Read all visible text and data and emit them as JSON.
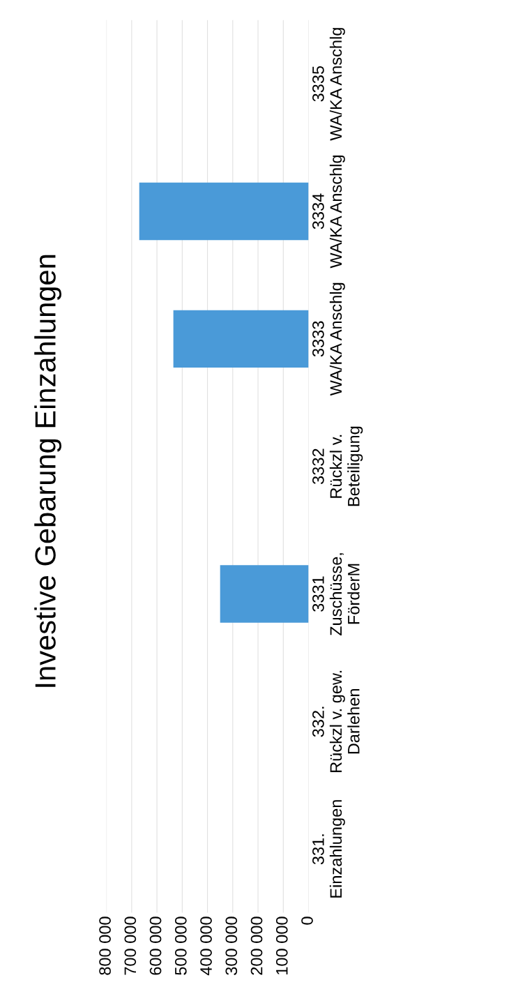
{
  "chart_data": {
    "type": "bar",
    "orientation": "horizontal",
    "title": "Investive Gebarung Einzahlungen",
    "categories": [
      "3335\nWA/KA Anschlg",
      "3334\nWA/KA Anschlg",
      "3333\nWA/KA Anschlg",
      "3332\nRückzl v.\nBeteiligung",
      "3331\nZuschüsse,\nFörderM",
      "332.\nRückzl v. gew.\nDarlehen",
      "331.\nEinzahlungen"
    ],
    "values": [
      0,
      670000,
      535000,
      0,
      350000,
      0,
      0
    ],
    "color": "#4a9ad8",
    "xlim": [
      800000,
      0
    ],
    "xticks": [
      {
        "value": 800000,
        "label": "800 000"
      },
      {
        "value": 700000,
        "label": "700 000"
      },
      {
        "value": 600000,
        "label": "600 000"
      },
      {
        "value": 500000,
        "label": "500 000"
      },
      {
        "value": 400000,
        "label": "400 000"
      },
      {
        "value": 300000,
        "label": "300 000"
      },
      {
        "value": 200000,
        "label": "200 000"
      },
      {
        "value": 100000,
        "label": "100 000"
      },
      0
    ],
    "grid": "x"
  }
}
